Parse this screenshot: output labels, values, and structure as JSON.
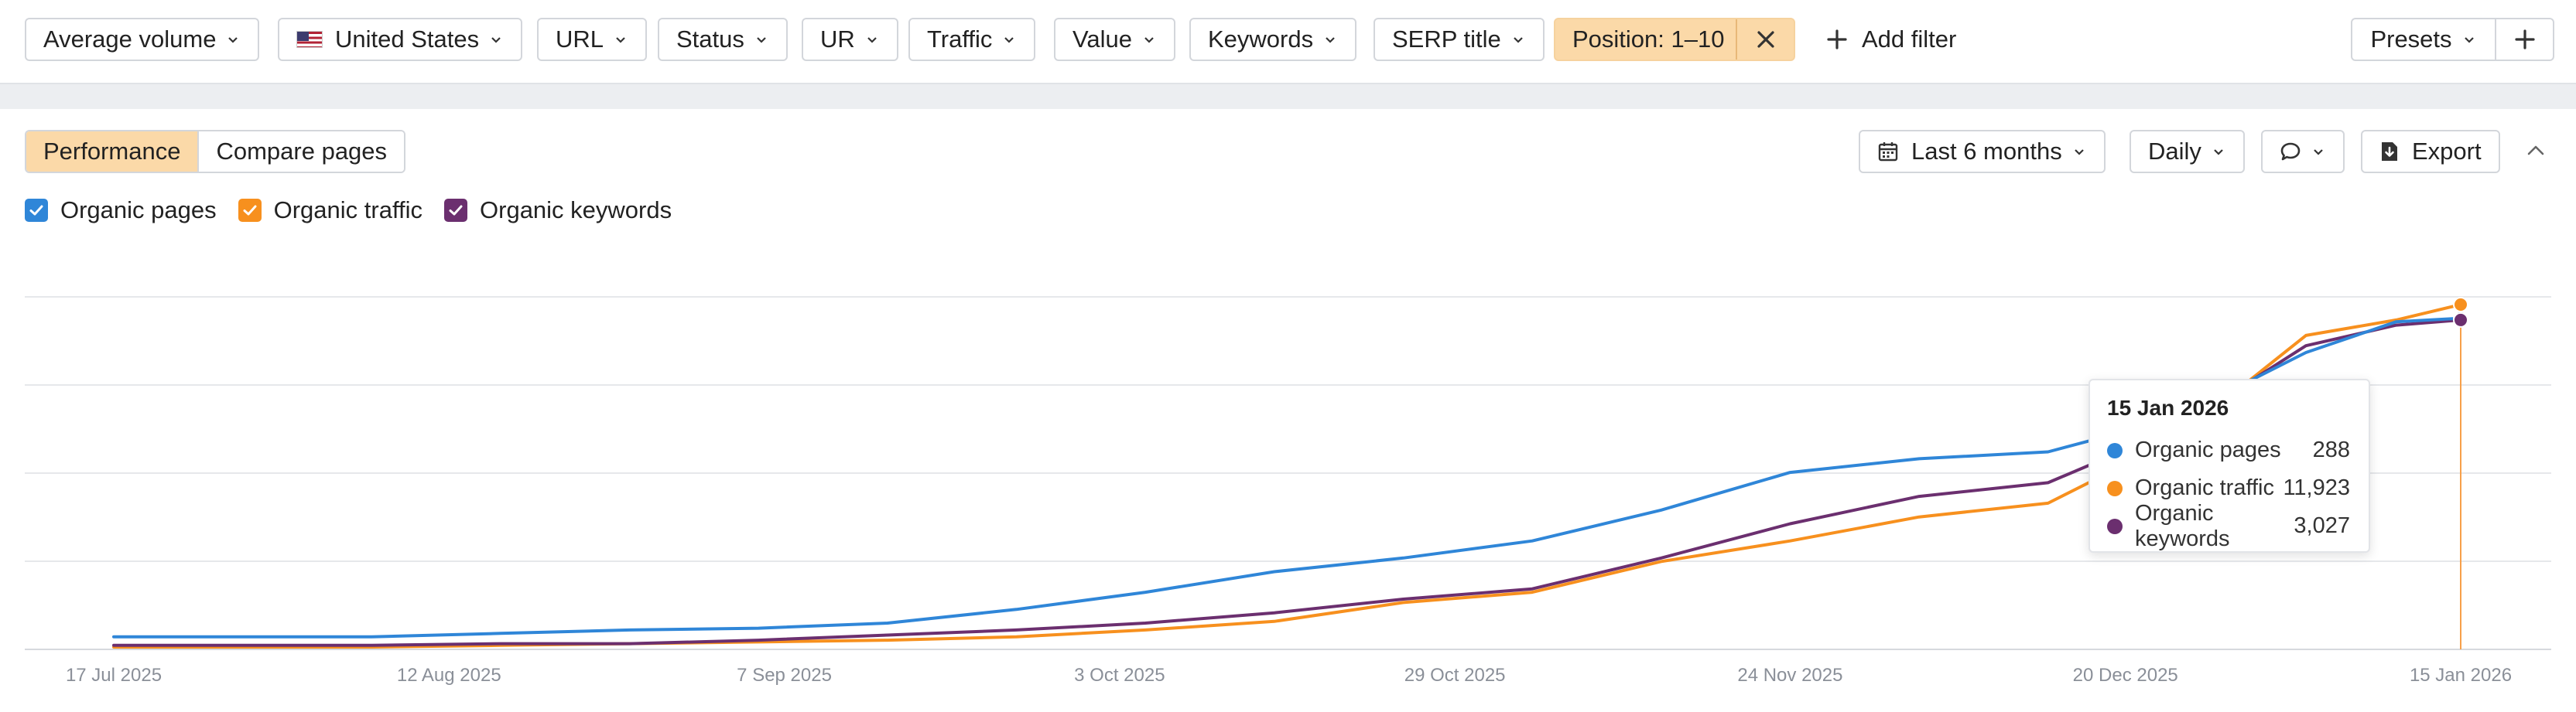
{
  "filters": {
    "average_volume": "Average volume",
    "country": "United States",
    "url": "URL",
    "status": "Status",
    "ur": "UR",
    "traffic": "Traffic",
    "value": "Value",
    "keywords": "Keywords",
    "serp_title": "SERP title",
    "position": "Position: 1–10",
    "add_filter": "Add filter",
    "presets": "Presets"
  },
  "toolbar": {
    "tabs": [
      "Performance",
      "Compare pages"
    ],
    "active_tab": "Performance",
    "date_range": "Last 6 months",
    "interval": "Daily",
    "export": "Export"
  },
  "legend": {
    "items": [
      {
        "label": "Organic pages",
        "color": "#2f86d8",
        "checked": true
      },
      {
        "label": "Organic traffic",
        "color": "#f7901e",
        "checked": true
      },
      {
        "label": "Organic keywords",
        "color": "#6b2f6f",
        "checked": true
      }
    ]
  },
  "tooltip": {
    "date": "15 Jan 2026",
    "rows": [
      {
        "label": "Organic pages",
        "value": "288",
        "color": "#2f86d8"
      },
      {
        "label": "Organic traffic",
        "value": "11,923",
        "color": "#f7901e"
      },
      {
        "label": "Organic keywords",
        "value": "3,027",
        "color": "#6b2f6f"
      }
    ]
  },
  "chart_data": {
    "type": "line",
    "x_tick_labels": [
      "17 Jul 2025",
      "12 Aug 2025",
      "7 Sep 2025",
      "3 Oct 2025",
      "29 Oct 2025",
      "24 Nov 2025",
      "20 Dec 2025",
      "15 Jan 2026"
    ],
    "x": [
      "17 Jul 2025",
      "27 Jul 2025",
      "6 Aug 2025",
      "16 Aug 2025",
      "26 Aug 2025",
      "5 Sep 2025",
      "15 Sep 2025",
      "25 Sep 2025",
      "5 Oct 2025",
      "15 Oct 2025",
      "25 Oct 2025",
      "4 Nov 2025",
      "14 Nov 2025",
      "24 Nov 2025",
      "4 Dec 2025",
      "14 Dec 2025",
      "24 Dec 2025",
      "3 Jan 2026",
      "10 Jan 2026",
      "15 Jan 2026"
    ],
    "grid": true,
    "legend_position": "top-left",
    "series": [
      {
        "name": "Organic pages",
        "color": "#2f86d8",
        "relative_values": [
          0.03,
          0.03,
          0.03,
          0.04,
          0.05,
          0.055,
          0.07,
          0.11,
          0.16,
          0.22,
          0.26,
          0.31,
          0.4,
          0.51,
          0.55,
          0.57,
          0.67,
          0.86,
          0.95,
          0.96
        ]
      },
      {
        "name": "Organic traffic",
        "color": "#f7901e",
        "relative_values": [
          0.0,
          0.0,
          0.0,
          0.005,
          0.01,
          0.015,
          0.02,
          0.03,
          0.05,
          0.075,
          0.13,
          0.16,
          0.25,
          0.31,
          0.38,
          0.42,
          0.61,
          0.91,
          0.955,
          1.0
        ]
      },
      {
        "name": "Organic keywords",
        "color": "#6b2f6f",
        "relative_values": [
          0.005,
          0.005,
          0.005,
          0.01,
          0.01,
          0.02,
          0.035,
          0.05,
          0.07,
          0.1,
          0.14,
          0.17,
          0.26,
          0.36,
          0.44,
          0.48,
          0.64,
          0.88,
          0.94,
          0.955
        ]
      }
    ],
    "marker_date": "15 Jan 2026"
  }
}
